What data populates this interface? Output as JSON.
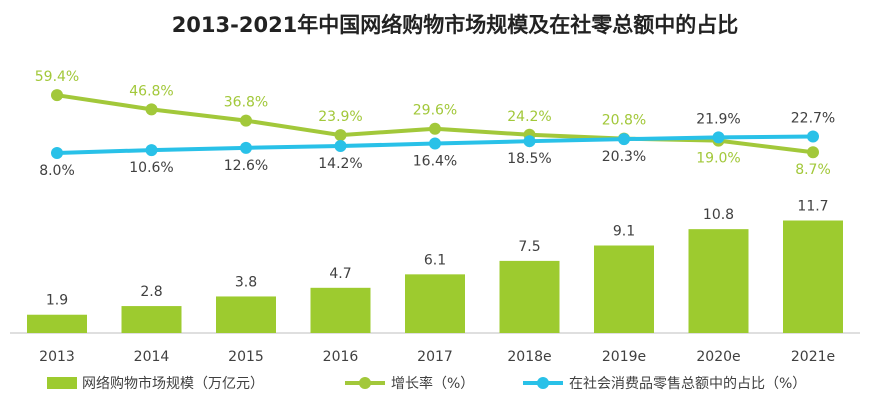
{
  "chart_data": [
    {
      "type": "bar",
      "title": "2013-2021年中国网络购物市场规模及在社零总额中的占比",
      "categories": [
        "2013",
        "2014",
        "2015",
        "2016",
        "2017",
        "2018e",
        "2019e",
        "2020e",
        "2021e"
      ],
      "series": [
        {
          "name": "网络购物市场规模（万亿元）",
          "color": "#9dcb2f",
          "values": [
            1.9,
            2.8,
            3.8,
            4.7,
            6.1,
            7.5,
            9.1,
            10.8,
            11.7
          ]
        }
      ],
      "ylim": [
        0,
        13
      ]
    },
    {
      "type": "line",
      "series": [
        {
          "name": "增长率（%）",
          "color": "#a2c83a",
          "values": [
            59.4,
            46.8,
            36.8,
            23.9,
            29.6,
            24.2,
            20.8,
            19.0,
            8.7
          ],
          "value_labels": [
            "59.4%",
            "46.8%",
            "36.8%",
            "23.9%",
            "29.6%",
            "24.2%",
            "20.8%",
            "19.0%",
            "8.7%"
          ]
        },
        {
          "name": "在社会消费品零售总额中的占比（%）",
          "color": "#29c1e8",
          "values": [
            8.0,
            10.6,
            12.6,
            14.2,
            16.4,
            18.5,
            20.3,
            21.9,
            22.7
          ],
          "value_labels": [
            "8.0%",
            "10.6%",
            "12.6%",
            "14.2%",
            "16.4%",
            "18.5%",
            "20.3%",
            "21.9%",
            "22.7%"
          ]
        }
      ],
      "ylim": [
        0,
        64
      ]
    }
  ]
}
